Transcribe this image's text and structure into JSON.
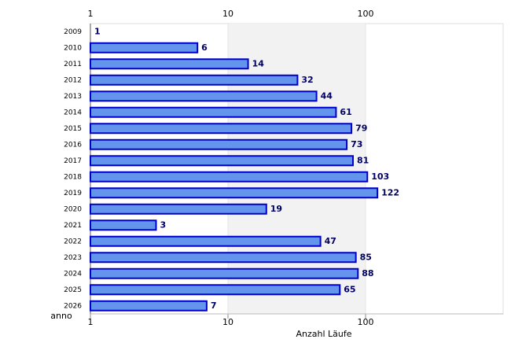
{
  "chart_data": {
    "type": "bar",
    "orientation": "horizontal",
    "categories": [
      "2009",
      "2010",
      "2011",
      "2012",
      "2013",
      "2014",
      "2015",
      "2016",
      "2017",
      "2018",
      "2019",
      "2020",
      "2021",
      "2022",
      "2023",
      "2024",
      "2025",
      "2026"
    ],
    "values": [
      1,
      6,
      14,
      32,
      44,
      61,
      79,
      73,
      81,
      103,
      122,
      19,
      3,
      47,
      85,
      88,
      65,
      7
    ],
    "color": "#6495ed",
    "edge_color": "#0000cc",
    "label_color": "#000066",
    "xlim": [
      1,
      1000
    ],
    "xticks": [
      1,
      10,
      100
    ],
    "log_x": true,
    "shade": [
      10,
      100
    ],
    "shade_color": "#f2f2f2",
    "xlabel": "Anzahl Läufe",
    "ylabel": "anno"
  }
}
